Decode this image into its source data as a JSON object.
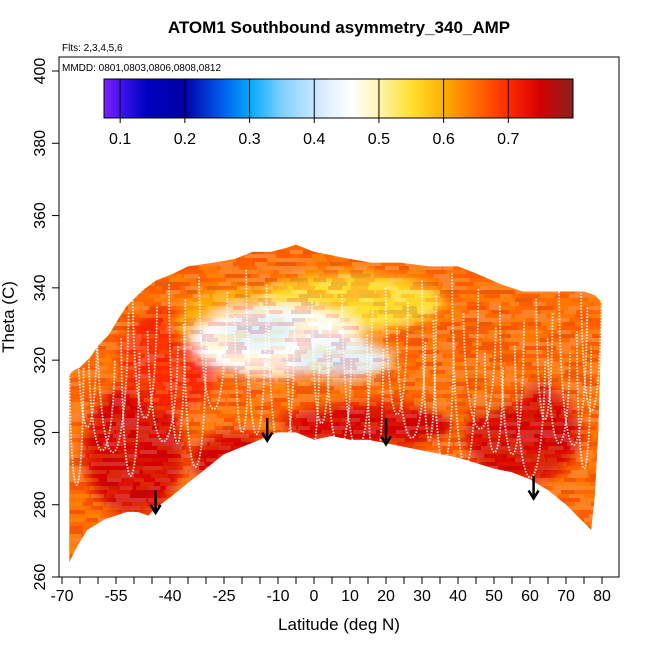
{
  "chart_data": {
    "type": "heatmap",
    "title": "ATOM1 Southbound asymmetry_340_AMP",
    "annotations": {
      "flights": "Flts: 2,3,4,5,6",
      "dates": "MMDD: 0801,0803,0806,0808,0812"
    },
    "xlabel": "Latitude (deg N)",
    "ylabel": "Theta (C)",
    "xlim": [
      -70,
      80
    ],
    "ylim": [
      260,
      400
    ],
    "x_tick_labels": [
      "-70",
      "-55",
      "-40",
      "-25",
      "-10",
      "0",
      "10",
      "20",
      "30",
      "40",
      "50",
      "60",
      "70",
      "80"
    ],
    "x_tick_values": [
      -70,
      -55,
      -40,
      -25,
      -10,
      0,
      10,
      20,
      30,
      40,
      50,
      60,
      70,
      80
    ],
    "x_minor_ticks": [
      -65,
      -60,
      -50,
      -45,
      -35,
      -30,
      -20,
      -15,
      -5,
      5,
      15,
      25,
      35,
      45,
      55,
      65,
      75
    ],
    "y_tick_labels": [
      "260",
      "280",
      "300",
      "320",
      "340",
      "360",
      "380",
      "400"
    ],
    "y_tick_values": [
      260,
      280,
      300,
      320,
      340,
      360,
      380,
      400
    ],
    "colorbar": {
      "range": [
        0.075,
        0.8
      ],
      "tick_values": [
        0.1,
        0.2,
        0.3,
        0.4,
        0.5,
        0.6,
        0.7
      ],
      "tick_labels": [
        "0.1",
        "0.2",
        "0.3",
        "0.4",
        "0.5",
        "0.6",
        "0.7"
      ],
      "stops": [
        [
          0.075,
          "#7f1fff"
        ],
        [
          0.11,
          "#3010e8"
        ],
        [
          0.14,
          "#0000c0"
        ],
        [
          0.2,
          "#0000a8"
        ],
        [
          0.26,
          "#0060f0"
        ],
        [
          0.3,
          "#00a8ff"
        ],
        [
          0.35,
          "#80d0ff"
        ],
        [
          0.42,
          "#e0f0ff"
        ],
        [
          0.46,
          "#ffffff"
        ],
        [
          0.5,
          "#fff4b0"
        ],
        [
          0.55,
          "#ffe030"
        ],
        [
          0.6,
          "#ffb000"
        ],
        [
          0.65,
          "#ff6a00"
        ],
        [
          0.7,
          "#ff2a00"
        ],
        [
          0.75,
          "#d40000"
        ],
        [
          0.8,
          "#8b2020"
        ]
      ]
    },
    "data_boundary": {
      "upper": [
        [
          -68,
          316
        ],
        [
          -67,
          317
        ],
        [
          -65,
          318
        ],
        [
          -62,
          321
        ],
        [
          -60,
          324
        ],
        [
          -57,
          327
        ],
        [
          -54,
          332
        ],
        [
          -52,
          335
        ],
        [
          -48,
          339
        ],
        [
          -44,
          342
        ],
        [
          -39,
          344
        ],
        [
          -35,
          346
        ],
        [
          -28,
          347
        ],
        [
          -22,
          348
        ],
        [
          -17,
          350
        ],
        [
          -12,
          350
        ],
        [
          -8,
          351
        ],
        [
          -5,
          352
        ],
        [
          0,
          350
        ],
        [
          5,
          349
        ],
        [
          10,
          348
        ],
        [
          16,
          347
        ],
        [
          24,
          347
        ],
        [
          32,
          346
        ],
        [
          40,
          346
        ],
        [
          45,
          344
        ],
        [
          52,
          341
        ],
        [
          58,
          339
        ],
        [
          64,
          339
        ],
        [
          70,
          339
        ],
        [
          75,
          339
        ],
        [
          78,
          338
        ],
        [
          80,
          336
        ],
        [
          79,
          300
        ],
        [
          78,
          282
        ],
        [
          77,
          273
        ]
      ],
      "lower": [
        [
          -68,
          264
        ],
        [
          -66,
          268
        ],
        [
          -63,
          273
        ],
        [
          -58,
          276
        ],
        [
          -55,
          277
        ],
        [
          -52,
          278
        ],
        [
          -49,
          278
        ],
        [
          -46,
          277
        ],
        [
          -44,
          279
        ],
        [
          -40,
          282
        ],
        [
          -35,
          286
        ],
        [
          -30,
          290
        ],
        [
          -25,
          294
        ],
        [
          -20,
          296
        ],
        [
          -15,
          298
        ],
        [
          -10,
          300
        ],
        [
          -5,
          300
        ],
        [
          0,
          298
        ],
        [
          5,
          299
        ],
        [
          10,
          298
        ],
        [
          15,
          298
        ],
        [
          20,
          297
        ],
        [
          30,
          295
        ],
        [
          40,
          293
        ],
        [
          50,
          290
        ],
        [
          55,
          289
        ],
        [
          60,
          287
        ],
        [
          65,
          284
        ],
        [
          70,
          280
        ],
        [
          74,
          276
        ],
        [
          77,
          273
        ]
      ]
    },
    "field_regions": [
      {
        "value": 0.73,
        "center": [
          -50,
          295
        ],
        "radius": [
          14,
          18
        ]
      },
      {
        "value": 0.74,
        "center": [
          -22,
          292
        ],
        "radius": [
          12,
          8
        ]
      },
      {
        "value": 0.72,
        "center": [
          15,
          302
        ],
        "radius": [
          24,
          6
        ]
      },
      {
        "value": 0.71,
        "center": [
          58,
          300
        ],
        "radius": [
          16,
          14
        ]
      },
      {
        "value": 0.66,
        "center": [
          -40,
          320
        ],
        "radius": [
          14,
          14
        ]
      },
      {
        "value": 0.64,
        "center": [
          45,
          318
        ],
        "radius": [
          16,
          12
        ]
      },
      {
        "value": 0.56,
        "center": [
          -20,
          330
        ],
        "radius": [
          18,
          10
        ]
      },
      {
        "value": 0.52,
        "center": [
          10,
          336
        ],
        "radius": [
          26,
          8
        ]
      },
      {
        "value": 0.44,
        "center": [
          -10,
          325
        ],
        "radius": [
          24,
          10
        ]
      },
      {
        "value": 0.38,
        "center": [
          -15,
          328
        ],
        "radius": [
          10,
          5
        ]
      },
      {
        "value": 0.42,
        "center": [
          8,
          320
        ],
        "radius": [
          14,
          5
        ]
      }
    ],
    "arrows": [
      {
        "lat": -44,
        "theta_top": 284,
        "theta_tip": 278
      },
      {
        "lat": -13,
        "theta_top": 304,
        "theta_tip": 298
      },
      {
        "lat": 20,
        "theta_top": 304,
        "theta_tip": 297
      },
      {
        "lat": 61,
        "theta_top": 288,
        "theta_tip": 282
      }
    ],
    "flight_tracks_note": "white dotted profile traces"
  }
}
